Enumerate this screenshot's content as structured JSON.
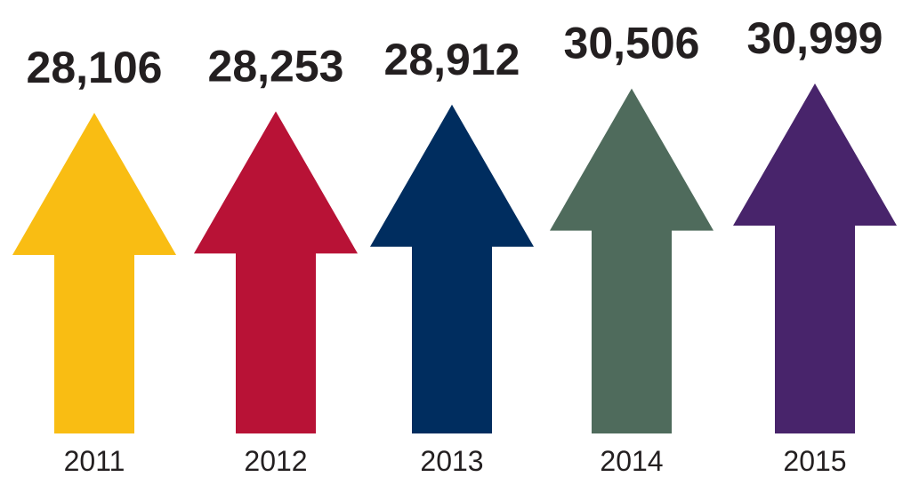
{
  "chart_data": {
    "type": "bar",
    "style": "upward arrows",
    "categories": [
      "2011",
      "2012",
      "2013",
      "2014",
      "2015"
    ],
    "values": [
      28106,
      28253,
      28912,
      30506,
      30999
    ],
    "value_labels": [
      "28,106",
      "28,253",
      "28,912",
      "30,506",
      "30,999"
    ],
    "colors": [
      "#f9bd13",
      "#b81236",
      "#002d5f",
      "#4f6b5c",
      "#48246b"
    ],
    "title": "",
    "xlabel": "",
    "ylabel": ""
  }
}
